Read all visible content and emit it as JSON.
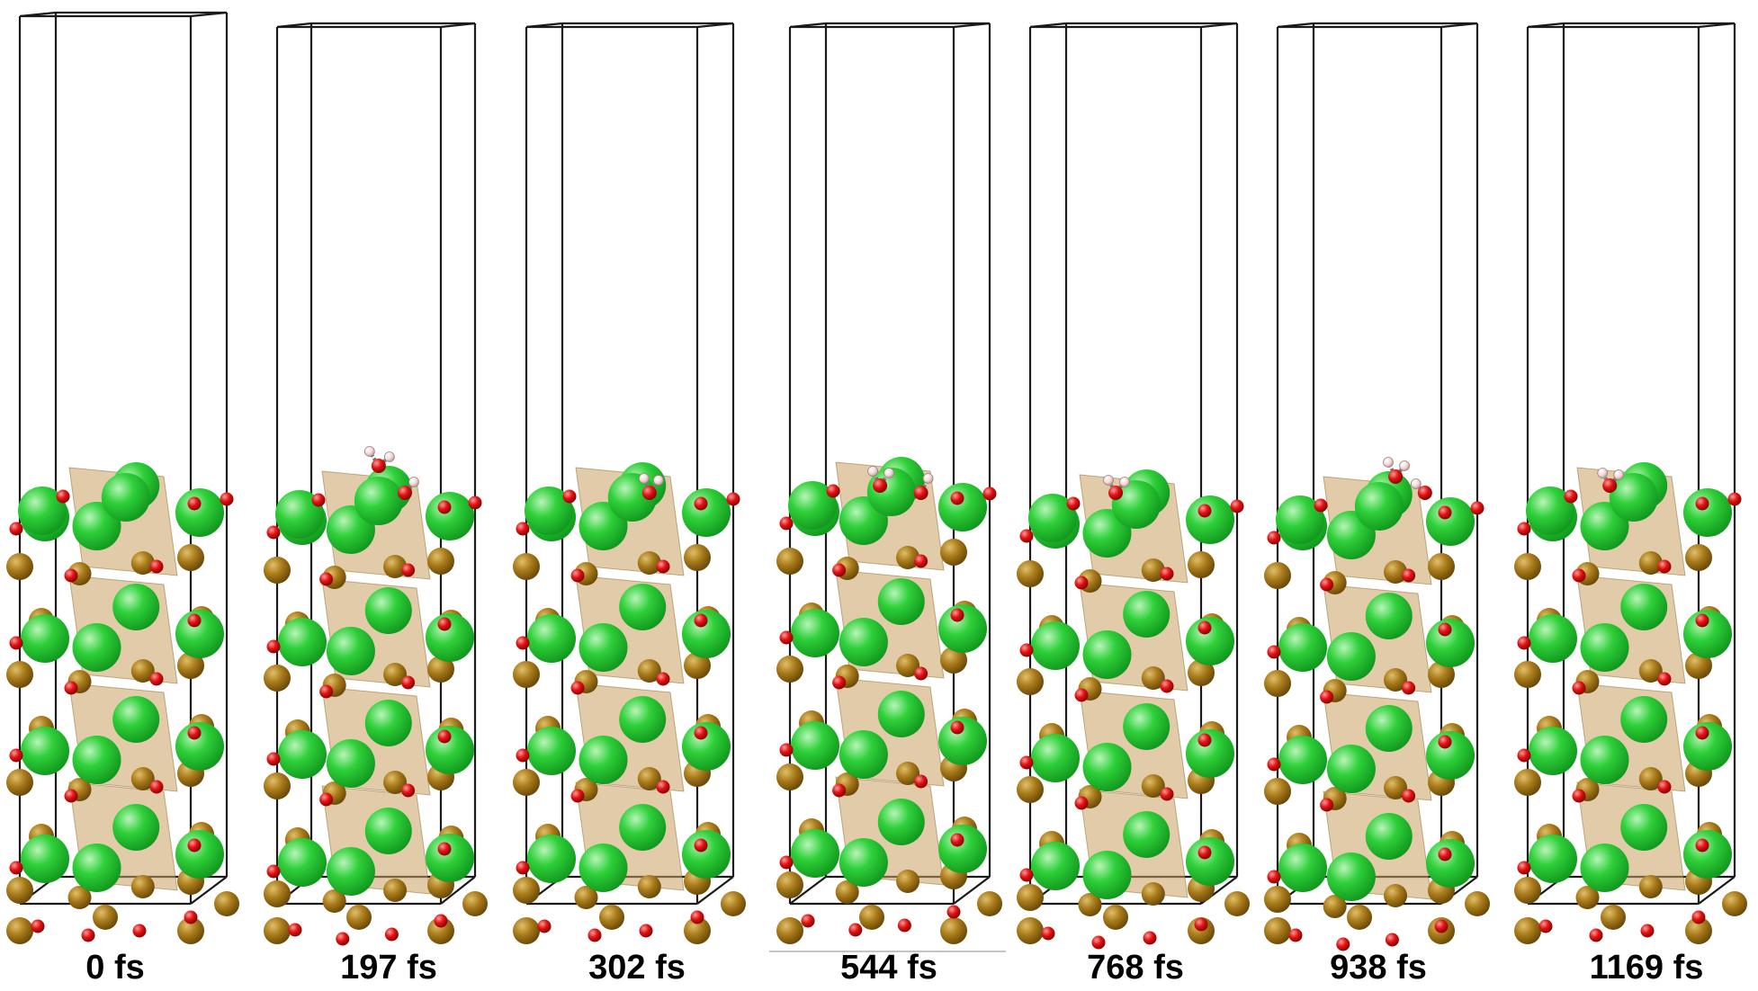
{
  "figure": {
    "panels": [
      {
        "time_label": "0 fs"
      },
      {
        "time_label": "197 fs"
      },
      {
        "time_label": "302 fs"
      },
      {
        "time_label": "544 fs"
      },
      {
        "time_label": "768 fs"
      },
      {
        "time_label": "938 fs"
      },
      {
        "time_label": "1169 fs"
      }
    ],
    "colors": {
      "cell_edge": "#1a1a1a",
      "large_atom": "#2fd03a",
      "large_atom_highlight": "#b8f5b8",
      "medium_atom": "#a87a1a",
      "medium_atom_highlight": "#e0bf6a",
      "small_atom": "#e01414",
      "hydrogen_atom": "#f2d8d8",
      "polyhedron": "#c9a061"
    }
  }
}
